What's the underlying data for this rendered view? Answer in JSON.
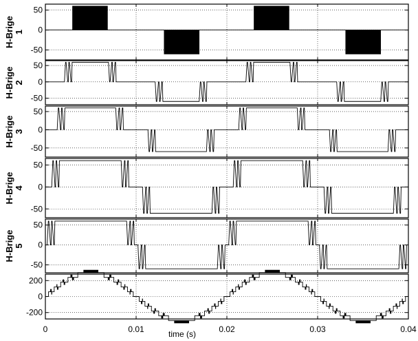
{
  "chart_data": {
    "type": "line",
    "xlabel": "time (s)",
    "xlim": [
      0,
      0.04
    ],
    "x_ticks": [
      "0",
      "0.01",
      "0.02",
      "0.03",
      "0.04"
    ],
    "x_tick_values": [
      0,
      0.01,
      0.02,
      0.03,
      0.04
    ],
    "grid": "dotted",
    "colors": {
      "line": "#000000",
      "axes": "#000000",
      "background": "#ffffff"
    },
    "panels": [
      {
        "ylabel_lines": [
          "H-Brige",
          "1"
        ],
        "ylim": [
          -75,
          65
        ],
        "y_ticks": [
          "50",
          "0",
          "-50"
        ],
        "y_tick_values": [
          50,
          0,
          -50
        ],
        "amplitude": 60,
        "segments": [
          {
            "start": 0.003,
            "end": 0.0069,
            "level": 1,
            "pwm": true
          },
          {
            "start": 0.0131,
            "end": 0.017,
            "level": -1,
            "pwm": true
          },
          {
            "start": 0.023,
            "end": 0.0269,
            "level": 1,
            "pwm": true
          },
          {
            "start": 0.0331,
            "end": 0.037,
            "level": -1,
            "pwm": true
          }
        ]
      },
      {
        "ylabel_lines": [
          "H-Brige",
          "2"
        ],
        "ylim": [
          -70,
          65
        ],
        "y_ticks": [
          "50",
          "0",
          "-50"
        ],
        "y_tick_values": [
          50,
          0,
          -50
        ],
        "amplitude": 60,
        "segments": [
          {
            "start": 0.0021,
            "end": 0.0078,
            "level": 1
          },
          {
            "start": 0.0121,
            "end": 0.0178,
            "level": -1
          },
          {
            "start": 0.0221,
            "end": 0.0278,
            "level": 1
          },
          {
            "start": 0.0321,
            "end": 0.0378,
            "level": -1
          }
        ]
      },
      {
        "ylabel_lines": [
          "H-Brige",
          "3"
        ],
        "ylim": [
          -75,
          65
        ],
        "y_ticks": [
          "50",
          "0",
          "-50"
        ],
        "y_tick_values": [
          50,
          0,
          -50
        ],
        "amplitude": 60,
        "segments": [
          {
            "start": 0.0013,
            "end": 0.0086,
            "level": 1
          },
          {
            "start": 0.0113,
            "end": 0.0186,
            "level": -1
          },
          {
            "start": 0.0213,
            "end": 0.0286,
            "level": 1
          },
          {
            "start": 0.0313,
            "end": 0.0386,
            "level": -1
          }
        ]
      },
      {
        "ylabel_lines": [
          "H-Brige",
          "4"
        ],
        "ylim": [
          -70,
          65
        ],
        "y_ticks": [
          "50",
          "0",
          "-50"
        ],
        "y_tick_values": [
          50,
          0,
          -50
        ],
        "amplitude": 60,
        "segments": [
          {
            "start": 0.0007,
            "end": 0.0092,
            "level": 1
          },
          {
            "start": 0.0107,
            "end": 0.0192,
            "level": -1
          },
          {
            "start": 0.0207,
            "end": 0.0292,
            "level": 1
          },
          {
            "start": 0.0307,
            "end": 0.0392,
            "level": -1
          }
        ]
      },
      {
        "ylabel_lines": [
          "H-Brige",
          "5"
        ],
        "ylim": [
          -70,
          65
        ],
        "y_ticks": [
          "50",
          "0",
          "-50"
        ],
        "y_tick_values": [
          50,
          0,
          -50
        ],
        "amplitude": 60,
        "segments": [
          {
            "start": 0.0002,
            "end": 0.0098,
            "level": 1
          },
          {
            "start": 0.0102,
            "end": 0.0198,
            "level": -1
          },
          {
            "start": 0.0202,
            "end": 0.0298,
            "level": 1
          },
          {
            "start": 0.0302,
            "end": 0.0398,
            "level": -1
          }
        ]
      },
      {
        "ylabel_lines": [],
        "ylim": [
          -280,
          280
        ],
        "y_ticks": [
          "200",
          "0",
          "-200"
        ],
        "y_tick_values": [
          200,
          0,
          -200
        ],
        "amplitude": 300,
        "sum_levels": [
          60,
          120,
          180,
          240,
          300
        ],
        "frequency": 50
      }
    ]
  }
}
